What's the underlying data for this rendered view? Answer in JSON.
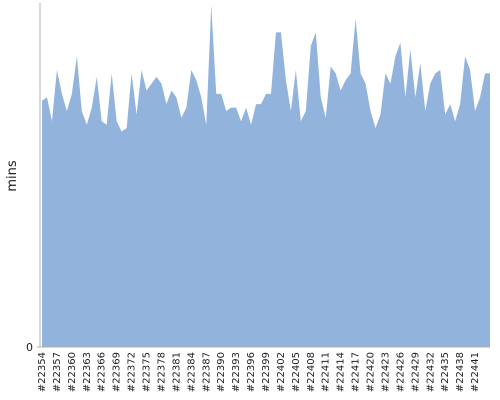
{
  "chart_data": {
    "type": "area",
    "y_label": "mins",
    "color": "#92b4dc",
    "ylim": [
      0,
      100
    ],
    "yticks": [
      0
    ],
    "categories": [
      "#22354",
      null,
      null,
      "#22357",
      null,
      null,
      "#22360",
      null,
      null,
      "#22363",
      null,
      null,
      "#22366",
      null,
      null,
      "#22369",
      null,
      null,
      "#22372",
      null,
      null,
      "#22375",
      null,
      null,
      "#22378",
      null,
      null,
      "#22381",
      null,
      null,
      "#22384",
      null,
      null,
      "#22387",
      null,
      null,
      "#22390",
      null,
      null,
      "#22393",
      null,
      null,
      "#22396",
      null,
      null,
      "#22399",
      null,
      null,
      "#22402",
      null,
      null,
      "#22405",
      null,
      null,
      "#22408",
      null,
      null,
      "#22411",
      null,
      null,
      "#22414",
      null,
      null,
      "#22417",
      null,
      null,
      "#22420",
      null,
      null,
      "#22423",
      null,
      null,
      "#22426",
      null,
      null,
      "#22429",
      null,
      null,
      "#22432",
      null,
      null,
      "#22435",
      null,
      null,
      "#22438",
      null,
      null,
      "#22441",
      null,
      null,
      null
    ],
    "values": [
      72,
      73,
      66,
      81,
      74,
      69,
      74,
      85,
      69,
      65,
      70,
      79,
      66,
      65,
      80,
      66,
      63,
      64,
      80,
      68,
      81,
      75,
      77,
      79,
      77,
      71,
      75,
      73,
      67,
      70,
      81,
      78,
      73,
      65,
      100,
      74,
      74,
      69,
      70,
      70,
      66,
      70,
      65,
      71,
      71,
      74,
      74,
      92,
      92,
      78,
      69,
      81,
      66,
      69,
      88,
      92,
      73,
      67,
      82,
      80,
      75,
      78,
      80,
      96,
      80,
      77,
      69,
      64,
      68,
      80,
      77,
      85,
      89,
      73,
      87,
      73,
      83,
      69,
      77,
      80,
      81,
      68,
      71,
      66,
      71,
      85,
      81,
      69,
      73,
      80,
      80
    ]
  }
}
